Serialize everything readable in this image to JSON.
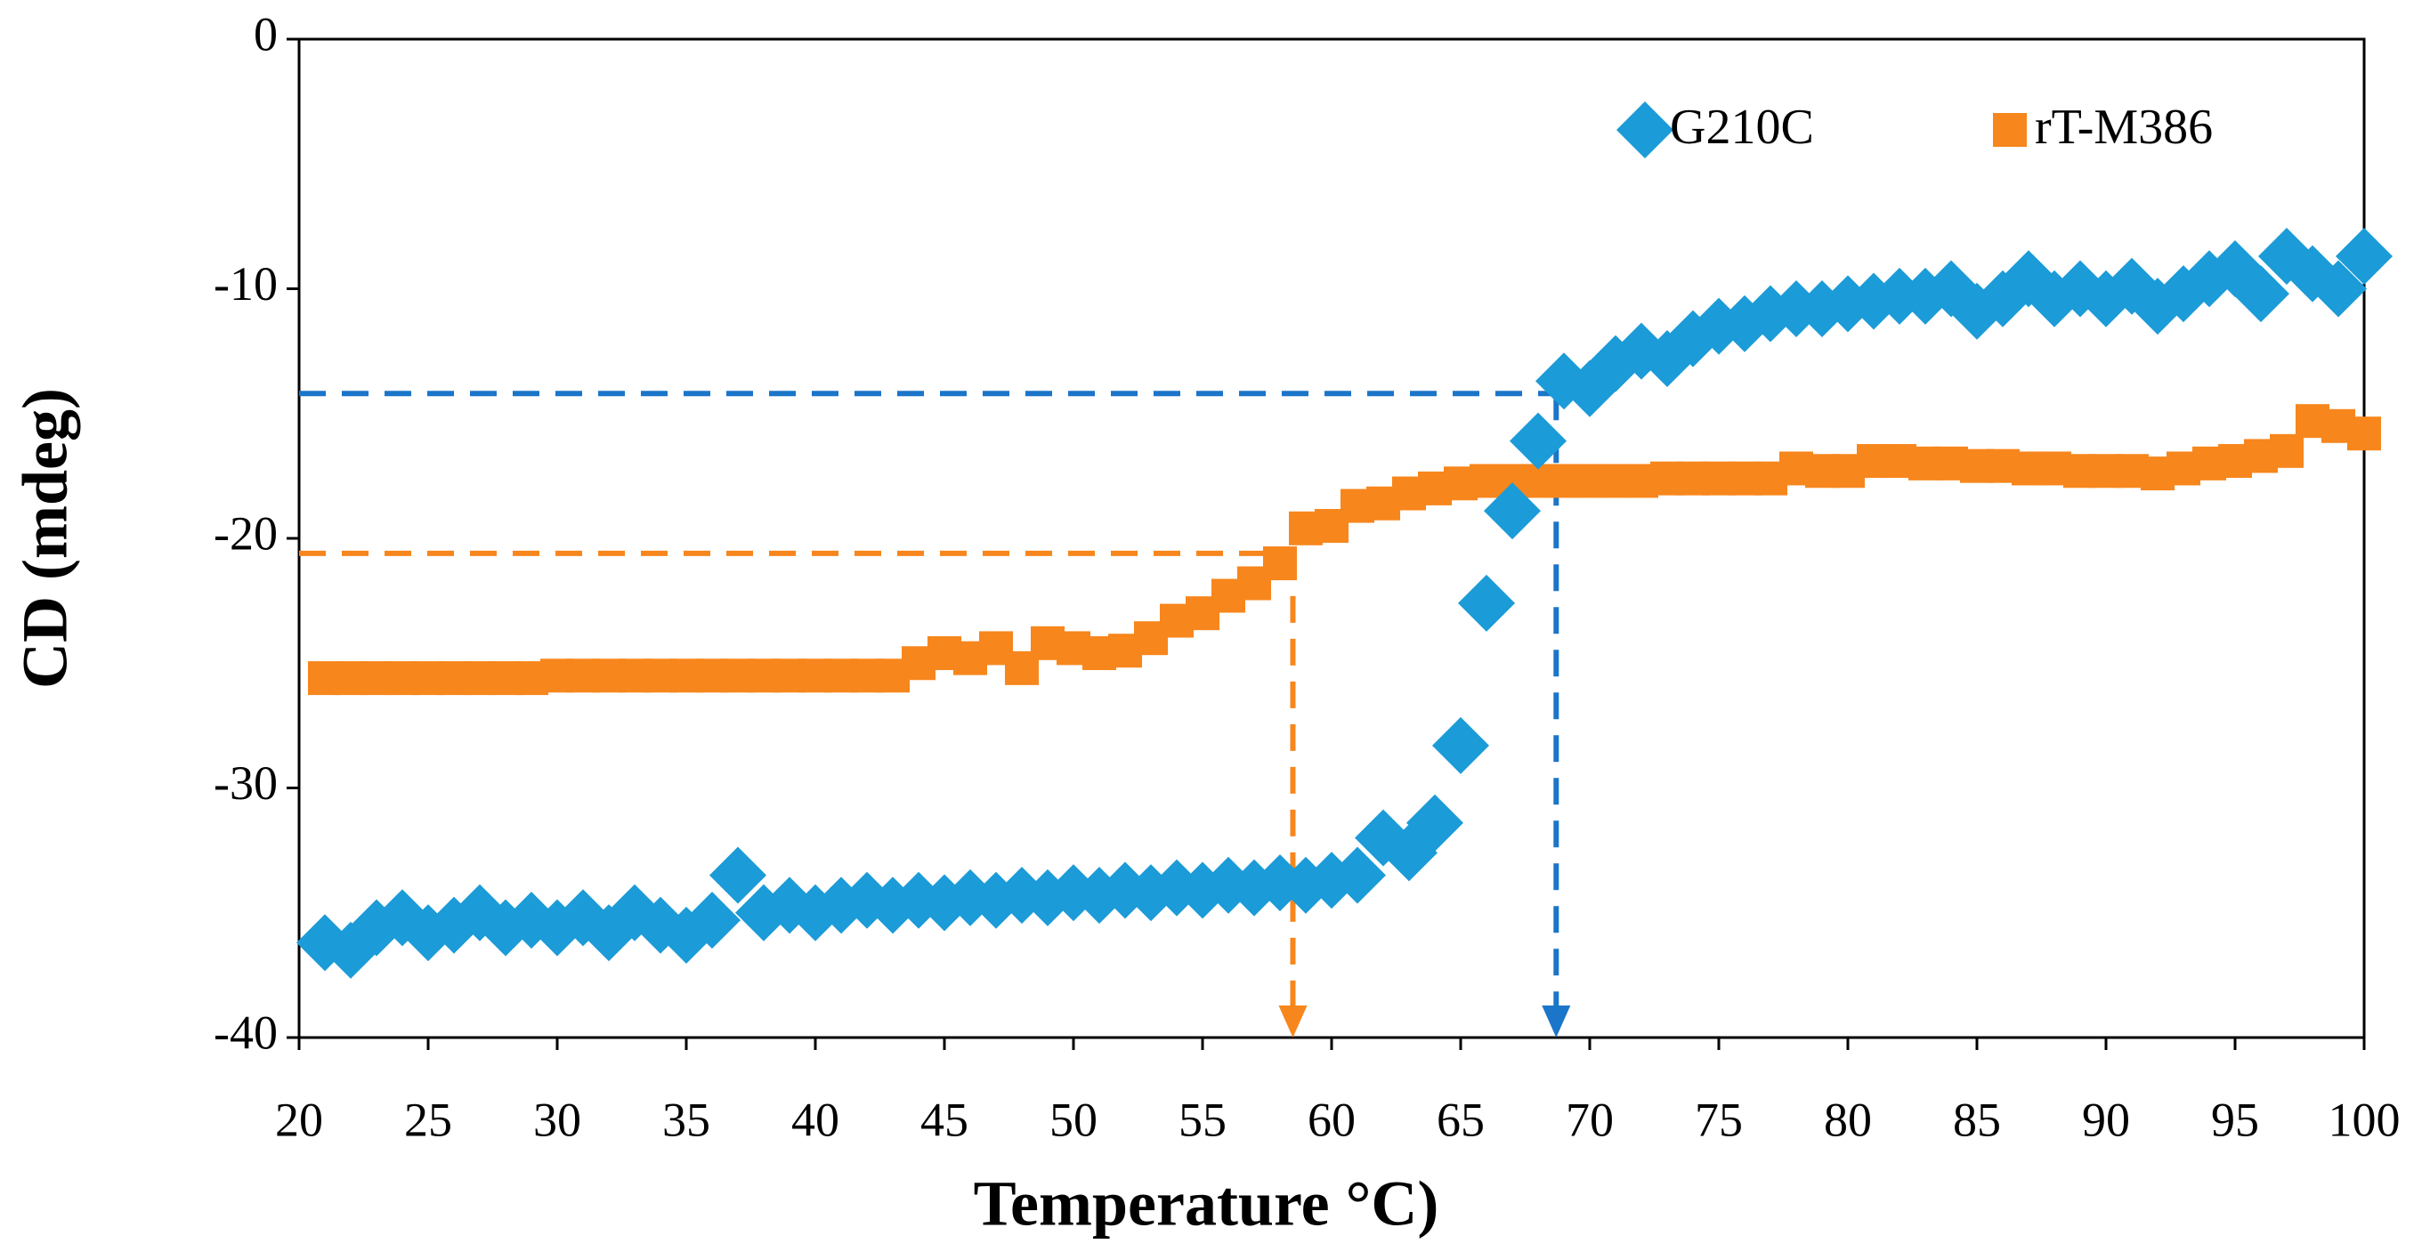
{
  "chart_data": {
    "type": "scatter",
    "x_label": "Temperature °C)",
    "y_label": "CD (mdeg)",
    "x": [
      21,
      22,
      23,
      24,
      25,
      26,
      27,
      28,
      29,
      30,
      31,
      32,
      33,
      34,
      35,
      36,
      37,
      38,
      39,
      40,
      41,
      42,
      43,
      44,
      45,
      46,
      47,
      48,
      49,
      50,
      51,
      52,
      53,
      54,
      55,
      56,
      57,
      58,
      59,
      60,
      61,
      62,
      63,
      64,
      65,
      66,
      67,
      68,
      69,
      70,
      71,
      72,
      73,
      74,
      75,
      76,
      77,
      78,
      79,
      80,
      81,
      82,
      83,
      84,
      85,
      86,
      87,
      88,
      89,
      90,
      91,
      92,
      93,
      94,
      95,
      96,
      97,
      98,
      99,
      100
    ],
    "series": [
      {
        "name": "G210C",
        "color": "#1b9bd7",
        "marker": "diamond",
        "values": [
          -36.2,
          -36.5,
          -35.6,
          -35.2,
          -35.8,
          -35.5,
          -35,
          -35.6,
          -35.3,
          -35.6,
          -35.2,
          -35.8,
          -35,
          -35.5,
          -35.9,
          -35.3,
          -33.5,
          -35,
          -34.7,
          -35,
          -34.7,
          -34.5,
          -34.7,
          -34.5,
          -34.6,
          -34.4,
          -34.5,
          -34.3,
          -34.4,
          -34.2,
          -34.3,
          -34.1,
          -34.2,
          -34,
          -34.1,
          -33.9,
          -34,
          -33.8,
          -33.9,
          -33.7,
          -33.5,
          -32,
          -32.6,
          -31.4,
          -28.3,
          -22.6,
          -18.9,
          -16.1,
          -13.7,
          -14,
          -13,
          -12.5,
          -12.8,
          -12,
          -11.5,
          -11.4,
          -11,
          -10.8,
          -10.8,
          -10.6,
          -10.5,
          -10.3,
          -10.3,
          -10,
          -10.9,
          -10.4,
          -9.6,
          -10.4,
          -10,
          -10.4,
          -9.9,
          -10.7,
          -10.2,
          -9.6,
          -9.2,
          -10.2,
          -8.7,
          -9.4,
          -10,
          -8.7
        ]
      },
      {
        "name": "rT-M386",
        "color": "#f7861c",
        "marker": "square",
        "values": [
          -25.6,
          -25.6,
          -25.6,
          -25.6,
          -25.6,
          -25.6,
          -25.6,
          -25.6,
          -25.6,
          -25.5,
          -25.5,
          -25.5,
          -25.5,
          -25.5,
          -25.5,
          -25.5,
          -25.5,
          -25.5,
          -25.5,
          -25.5,
          -25.5,
          -25.5,
          -25.5,
          -25,
          -24.6,
          -24.8,
          -24.4,
          -25.2,
          -24.2,
          -24.4,
          -24.6,
          -24.5,
          -24,
          -23.3,
          -23,
          -22.3,
          -21.8,
          -21,
          -19.6,
          -19.5,
          -18.7,
          -18.6,
          -18.2,
          -18,
          -17.8,
          -17.7,
          -17.7,
          -17.7,
          -17.7,
          -17.7,
          -17.7,
          -17.7,
          -17.6,
          -17.6,
          -17.6,
          -17.6,
          -17.6,
          -17.2,
          -17.3,
          -17.3,
          -16.9,
          -16.9,
          -17,
          -17,
          -17.1,
          -17.1,
          -17.2,
          -17.2,
          -17.3,
          -17.3,
          -17.3,
          -17.4,
          -17.2,
          -17,
          -16.9,
          -16.7,
          -16.5,
          -15.3,
          -15.5,
          -15.8
        ]
      }
    ],
    "guides": [
      {
        "x": 58.5,
        "y": -20.6,
        "color": "#f7861c"
      },
      {
        "x": 68.7,
        "y": -14.2,
        "color": "#1b75c9"
      }
    ],
    "xlim": [
      20,
      100
    ],
    "xticks": [
      20,
      25,
      30,
      35,
      40,
      45,
      50,
      55,
      60,
      65,
      70,
      75,
      80,
      85,
      90,
      95,
      100
    ],
    "ylim": [
      -40,
      0
    ],
    "yticks": [
      -40,
      -30,
      -20,
      -10,
      0
    ],
    "legend": "upper right"
  }
}
